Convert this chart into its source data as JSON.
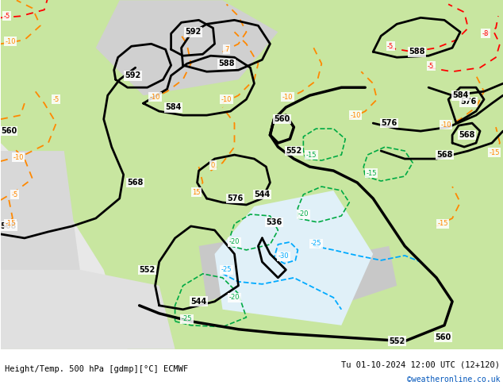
{
  "title_left": "Height/Temp. 500 hPa [gdmp][°C] ECMWF",
  "title_right": "Tu 01-10-2024 12:00 UTC (12+120)",
  "watermark": "©weatheronline.co.uk",
  "bg_land_color": "#c8e6a0",
  "bg_sea_color": "#d8eef8",
  "bg_gray_color": "#c0c0c0",
  "contour_color_z500": "#000000",
  "contour_color_temp_warm": "#ff8800",
  "contour_color_temp_cold": "#00aaff",
  "contour_color_temp_red": "#ff0000",
  "contour_color_green": "#00aa44",
  "footer_bg": "#ffffff",
  "text_color": "#000000",
  "link_color": "#0055bb"
}
